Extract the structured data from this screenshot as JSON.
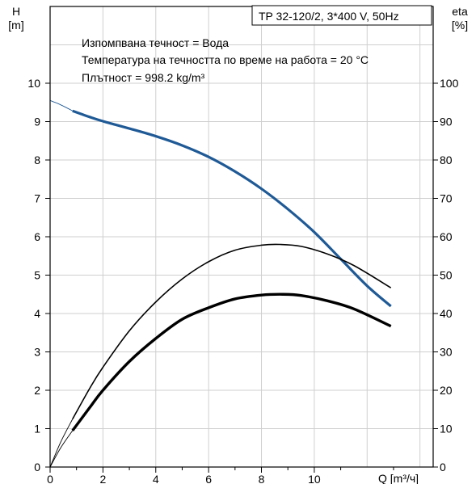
{
  "chart_data": {
    "type": "line",
    "title": "TP 32-120/2, 3*400 V, 50Hz",
    "annotations": [
      "Изпомпвана течност = Вода",
      "Температура на течността по време на работа = 20 °C",
      "Плътност = 998.2 kg/m³"
    ],
    "xlabel": "Q [m³/ч]",
    "ylabel_left": [
      "H",
      "[m]"
    ],
    "ylabel_right": [
      "eta",
      "[%]"
    ],
    "xlim": [
      0,
      14.5
    ],
    "ylim_left": [
      0,
      12
    ],
    "ylim_right": [
      0,
      120
    ],
    "x_ticks": [
      "0",
      "2",
      "4",
      "6",
      "8",
      "10"
    ],
    "y_left_ticks": [
      "0",
      "1",
      "2",
      "3",
      "4",
      "5",
      "6",
      "7",
      "8",
      "9",
      "10"
    ],
    "y_right_ticks": [
      "0",
      "10",
      "20",
      "30",
      "40",
      "50",
      "60",
      "70",
      "80",
      "90",
      "100"
    ],
    "grid": true,
    "series": [
      {
        "axis": "left",
        "color": "#1f5a96",
        "x": [
          0.85,
          1.5,
          2,
          3,
          4,
          5,
          6,
          7,
          8,
          9,
          10,
          11,
          12,
          12.9
        ],
        "y": [
          9.28,
          9.12,
          9.01,
          8.82,
          8.62,
          8.38,
          8.08,
          7.7,
          7.25,
          6.72,
          6.12,
          5.42,
          4.72,
          4.19
        ],
        "extension_x": [
          0,
          0.3,
          0.6,
          0.85
        ],
        "extension_y": [
          9.55,
          9.47,
          9.37,
          9.28
        ]
      },
      {
        "axis": "right",
        "color": "#000000",
        "x": [
          0.85,
          1.5,
          2,
          3,
          4,
          5,
          6,
          7,
          8,
          8.7,
          9.5,
          10.5,
          11.5,
          12.9
        ],
        "y": [
          12.5,
          20.5,
          26,
          35.5,
          43,
          49,
          53.5,
          56.5,
          57.8,
          58,
          57.5,
          55.5,
          52.5,
          46.7
        ],
        "extension_x": [
          0,
          0.4,
          0.85
        ],
        "extension_y": [
          0,
          6.5,
          12.5
        ]
      },
      {
        "axis": "right",
        "color": "#000000",
        "x": [
          0.85,
          1.5,
          2,
          3,
          4,
          5,
          6,
          7,
          8,
          8.8,
          9.5,
          10.5,
          11.5,
          12.9
        ],
        "y": [
          9.5,
          15.5,
          20,
          27.5,
          33.5,
          38.5,
          41.5,
          43.8,
          44.8,
          45,
          44.7,
          43.3,
          41.2,
          36.7
        ],
        "extension_x": [
          0,
          0.4,
          0.85
        ],
        "extension_y": [
          0,
          5,
          9.5
        ]
      }
    ]
  }
}
